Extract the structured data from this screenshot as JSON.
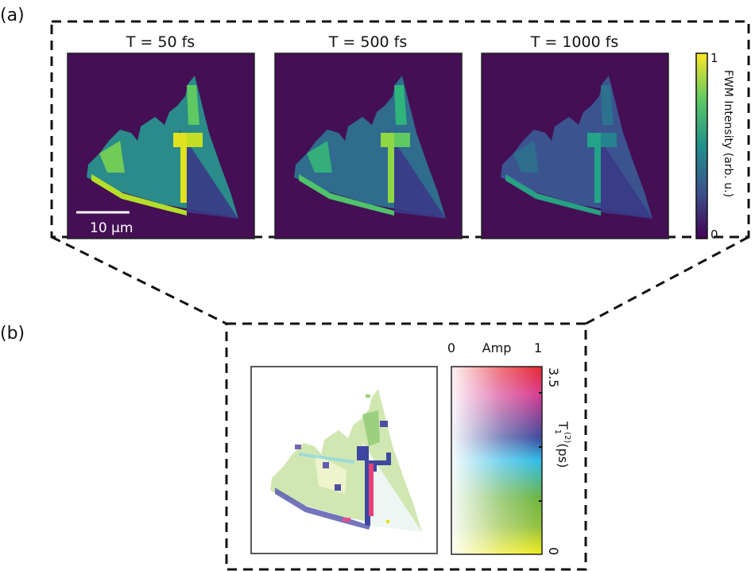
{
  "panel_a": {
    "label": "(a)",
    "images": [
      {
        "title": "T = 50 fs",
        "intensity": 1.0
      },
      {
        "title": "T = 500 fs",
        "intensity": 0.72
      },
      {
        "title": "T = 1000 fs",
        "intensity": 0.5
      }
    ],
    "scale_bar": "10 µm",
    "colorbar": {
      "label": "FWM Intensity (arb. u.)",
      "min": "0",
      "max": "1",
      "colormap": "viridis"
    }
  },
  "panel_b": {
    "label": "(b)",
    "colorbar": {
      "x_min": "0",
      "x_label": "Amp",
      "x_max": "1",
      "y_max": "3.5",
      "y_min": "0",
      "y_label_main": "T",
      "y_label_sub": "1",
      "y_label_sup": "(2)",
      "y_label_unit": "(ps)"
    }
  },
  "colors": {
    "background_dark": "#440f54",
    "viridis_low": "#440154",
    "viridis_mid": "#21908c",
    "viridis_high": "#fde725"
  }
}
